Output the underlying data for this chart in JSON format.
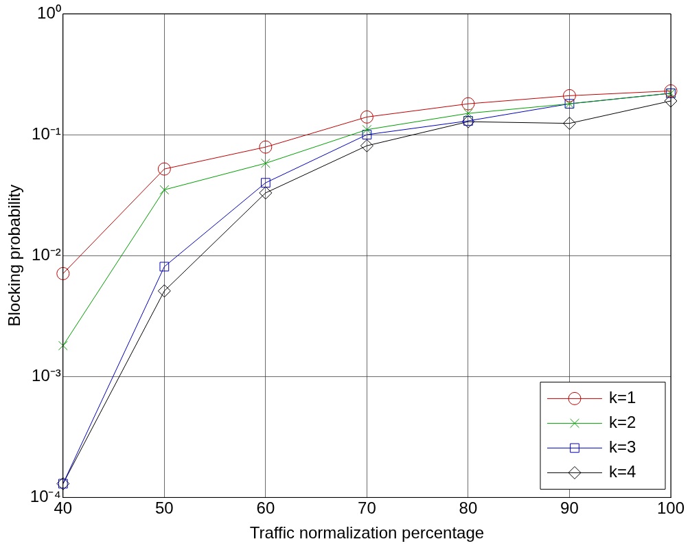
{
  "chart_data": {
    "type": "line",
    "xlabel": "Traffic normalization percentage",
    "ylabel": "Blocking probability",
    "x": [
      40,
      50,
      60,
      70,
      80,
      90,
      100
    ],
    "series": [
      {
        "name": "k=1",
        "color": "#c00000",
        "marker": "circle",
        "values": [
          0.0071,
          0.052,
          0.079,
          0.14,
          0.18,
          0.21,
          0.23
        ]
      },
      {
        "name": "k=2",
        "color": "#00a000",
        "marker": "cross",
        "values": [
          0.0018,
          0.035,
          0.058,
          0.11,
          0.15,
          0.18,
          0.22
        ]
      },
      {
        "name": "k=3",
        "color": "#0000c0",
        "marker": "square",
        "values": [
          0.00013,
          0.0081,
          0.04,
          0.1,
          0.13,
          0.18,
          0.22
        ]
      },
      {
        "name": "k=4",
        "color": "#000000",
        "marker": "diamond",
        "values": [
          0.00013,
          0.0051,
          0.033,
          0.081,
          0.128,
          0.124,
          0.19
        ]
      }
    ],
    "xlim": [
      40,
      100
    ],
    "xticks": [
      40,
      50,
      60,
      70,
      80,
      90,
      100
    ],
    "ylim": [
      0.0001,
      1
    ],
    "yticks": [
      {
        "value": 0.0001,
        "label": "10⁻⁴"
      },
      {
        "value": 0.001,
        "label": "10⁻³"
      },
      {
        "value": 0.01,
        "label": "10⁻²"
      },
      {
        "value": 0.1,
        "label": "10⁻¹"
      },
      {
        "value": 1,
        "label": "10⁰"
      }
    ],
    "log": "y",
    "grid": true,
    "legend": "bottom right",
    "line_style": "solid"
  }
}
